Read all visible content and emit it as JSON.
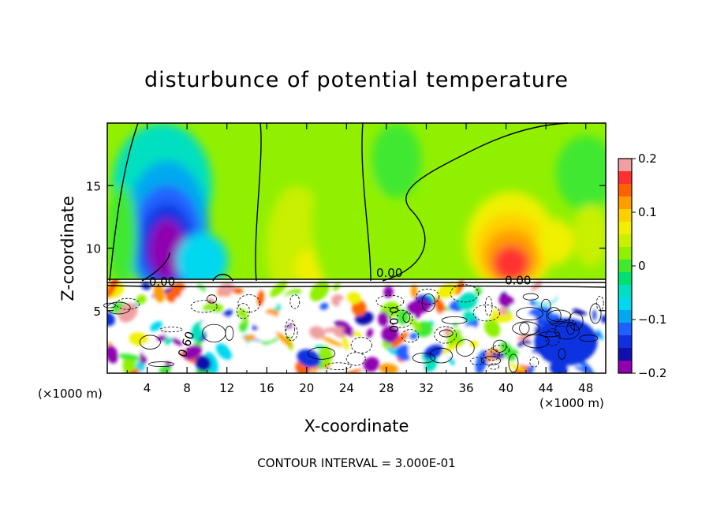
{
  "chart_data": {
    "type": "heatmap",
    "title": "disturbunce of potential temperature",
    "xlabel": "X-coordinate",
    "ylabel": "Z-coordinate",
    "x_unit_left": "(×1000 m)",
    "x_unit_right": "(×1000 m)",
    "footer": "CONTOUR INTERVAL = 3.000E-01",
    "xlim": [
      0,
      50
    ],
    "ylim": [
      0,
      20
    ],
    "x_ticks": [
      4,
      8,
      12,
      16,
      20,
      24,
      28,
      32,
      36,
      40,
      44,
      48
    ],
    "y_ticks": [
      5,
      10,
      15
    ],
    "colorbar": {
      "range": [
        -0.2,
        0.2
      ],
      "ticks": [
        0.2,
        0.1,
        0,
        -0.1,
        -0.2
      ],
      "tick_labels": [
        "0.2",
        "0.1",
        "0",
        "−0.1",
        "−0.2"
      ],
      "colors": [
        "#f0a0a0",
        "#ff3030",
        "#ff6000",
        "#ff9c00",
        "#ffd000",
        "#f0f000",
        "#c8f000",
        "#90f000",
        "#40e830",
        "#00e070",
        "#00e0c0",
        "#00d8f0",
        "#00a8f0",
        "#2060ff",
        "#1030e0",
        "#1010b0",
        "#9000b0"
      ]
    },
    "contour_labels": [
      {
        "text": "0.00",
        "x": 28.3,
        "z": 7.7
      },
      {
        "text": "0.00",
        "x": 41.2,
        "z": 7.1
      },
      {
        "text": "0.00",
        "x": 5.5,
        "z": 7.0
      },
      {
        "text": "0.60",
        "x": 8.3,
        "z": 2.2
      },
      {
        "text": "00.0",
        "x": 29.2,
        "z": 4.3
      }
    ],
    "features": [
      {
        "name": "upper cold anomaly",
        "x": 6,
        "z": 10.5,
        "value": -0.18
      },
      {
        "name": "upper warm anomaly",
        "x": 40.5,
        "z": 10.2,
        "value": 0.17
      },
      {
        "name": "inversion layer",
        "z": 7.2
      }
    ]
  }
}
